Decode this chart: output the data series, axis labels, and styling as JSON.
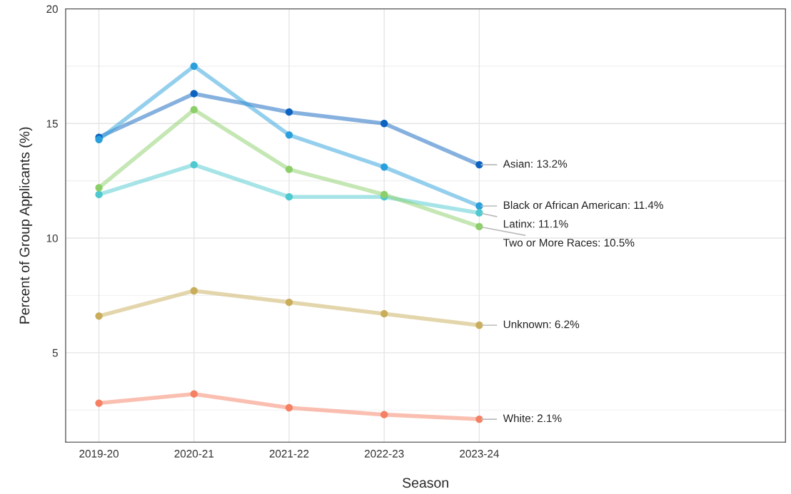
{
  "chart_data": {
    "type": "line",
    "xlabel": "Season",
    "ylabel": "Percent of Group Applicants (%)",
    "categories": [
      "2019-20",
      "2020-21",
      "2021-22",
      "2022-23",
      "2023-24"
    ],
    "series": [
      {
        "color": "#0d63c0",
        "values": [
          14.4,
          16.3,
          15.5,
          15.0,
          13.2
        ]
      },
      {
        "color": "#29a0dc",
        "values": [
          14.3,
          17.5,
          14.5,
          13.1,
          11.4
        ]
      },
      {
        "color": "#4ec9cf",
        "values": [
          11.9,
          13.2,
          11.8,
          11.8,
          11.1
        ]
      },
      {
        "color": "#8ccf6a",
        "values": [
          12.2,
          15.6,
          13.0,
          11.9,
          10.5
        ]
      },
      {
        "color": "#c9ad5a",
        "values": [
          6.6,
          7.7,
          7.2,
          6.7,
          6.2
        ]
      },
      {
        "color": "#f58063",
        "values": [
          2.8,
          3.2,
          2.6,
          2.3,
          2.1
        ]
      }
    ],
    "annotations": [
      {
        "text": "Asian: 13.2%",
        "x": "2023-24",
        "y": 13.2
      },
      {
        "text": "Black or African American: 11.4%",
        "x": "2023-24",
        "y": 11.4
      },
      {
        "text": "Latinx: 11.1%",
        "x": "2023-24",
        "y": 11.1
      },
      {
        "text": "Two or More Races: 10.5%",
        "x": "2023-24",
        "y": 10.5
      },
      {
        "text": "Unknown: 6.2%",
        "x": "2023-24",
        "y": 6.2
      },
      {
        "text": "White: 2.1%",
        "x": "2023-24",
        "y": 2.1
      }
    ],
    "ylim": [
      1.1,
      20
    ],
    "yticks": [
      5,
      10,
      15,
      20
    ],
    "grid": true,
    "marker": "circle",
    "line_style": "solid",
    "legend": false
  }
}
